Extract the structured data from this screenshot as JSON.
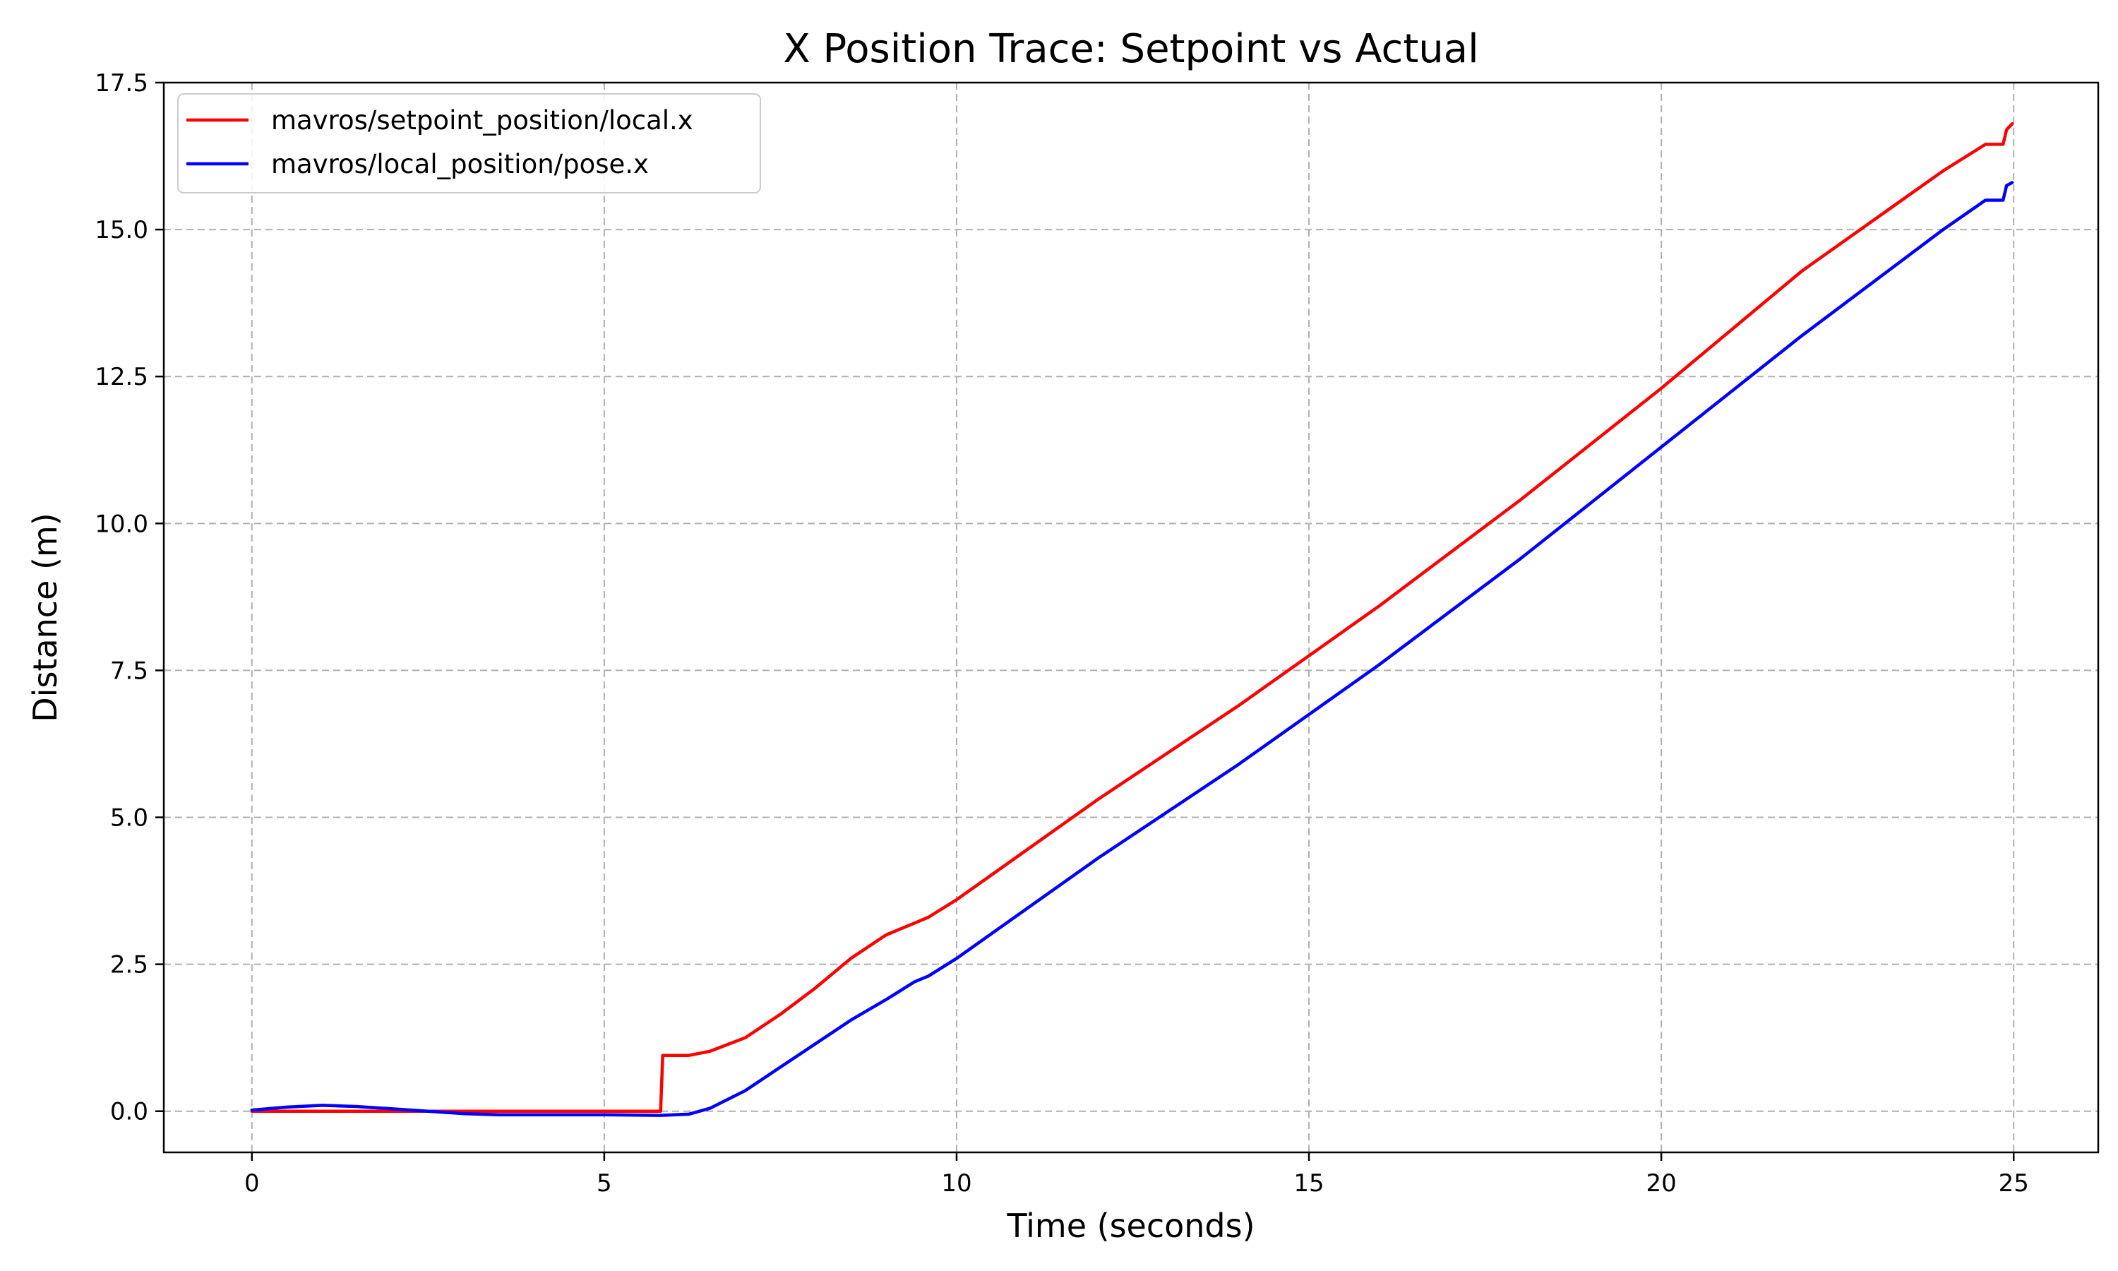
{
  "chart_data": {
    "type": "line",
    "title": "X Position Trace: Setpoint vs Actual",
    "xlabel": "Time (seconds)",
    "ylabel": "Distance (m)",
    "xlim": [
      -1.25,
      26.2
    ],
    "ylim": [
      -0.7,
      17.5
    ],
    "x_ticks": [
      0,
      5,
      10,
      15,
      20,
      25
    ],
    "x_tick_labels": [
      "0",
      "5",
      "10",
      "15",
      "20",
      "25"
    ],
    "y_ticks": [
      0.0,
      2.5,
      5.0,
      7.5,
      10.0,
      12.5,
      15.0,
      17.5
    ],
    "y_tick_labels": [
      "0.0",
      "2.5",
      "5.0",
      "7.5",
      "10.0",
      "12.5",
      "15.0",
      "17.5"
    ],
    "grid": true,
    "legend_position": "top-left",
    "series": [
      {
        "name": "mavros/setpoint_position/local.x",
        "color": "#ff0000",
        "x": [
          0,
          5.8,
          5.83,
          6.2,
          6.5,
          7.0,
          7.5,
          8.0,
          8.5,
          9.0,
          9.4,
          9.6,
          10.0,
          12.0,
          14.0,
          16.0,
          18.0,
          20.0,
          22.0,
          24.0,
          24.6,
          24.85,
          24.9,
          24.98
        ],
        "y": [
          0,
          0,
          0.95,
          0.95,
          1.02,
          1.25,
          1.65,
          2.1,
          2.6,
          3.0,
          3.2,
          3.3,
          3.6,
          5.3,
          6.9,
          8.6,
          10.4,
          12.3,
          14.3,
          16.0,
          16.45,
          16.45,
          16.7,
          16.8
        ]
      },
      {
        "name": "mavros/local_position/pose.x",
        "color": "#0000ff",
        "x": [
          0,
          0.5,
          1.0,
          1.5,
          2.0,
          3.0,
          3.5,
          4.0,
          5.0,
          5.8,
          6.2,
          6.5,
          7.0,
          7.5,
          8.0,
          8.5,
          9.0,
          9.4,
          9.6,
          10.0,
          12.0,
          14.0,
          16.0,
          18.0,
          20.0,
          22.0,
          24.0,
          24.6,
          24.85,
          24.9,
          24.98
        ],
        "y": [
          0.02,
          0.07,
          0.1,
          0.08,
          0.04,
          -0.04,
          -0.06,
          -0.06,
          -0.06,
          -0.07,
          -0.05,
          0.05,
          0.35,
          0.75,
          1.15,
          1.55,
          1.9,
          2.2,
          2.3,
          2.6,
          4.3,
          5.9,
          7.6,
          9.4,
          11.3,
          13.2,
          15.0,
          15.5,
          15.5,
          15.75,
          15.8
        ]
      }
    ]
  }
}
